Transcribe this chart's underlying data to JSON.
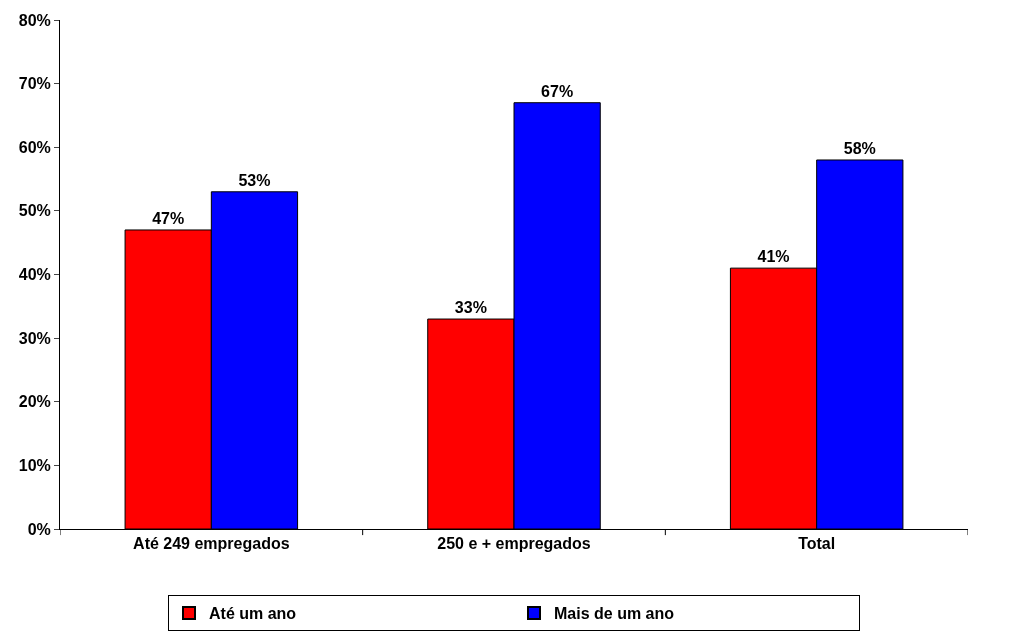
{
  "chart_data": {
    "type": "bar",
    "categories": [
      "Até 249 empregados",
      "250 e + empregados",
      "Total"
    ],
    "series": [
      {
        "name": "Até um ano",
        "color": "#ff0000",
        "values": [
          47,
          33,
          41
        ],
        "value_labels": [
          "47%",
          "33%",
          "41%"
        ]
      },
      {
        "name": "Mais de um ano",
        "color": "#0000ff",
        "values": [
          53,
          67,
          58
        ],
        "value_labels": [
          "53%",
          "67%",
          "58%"
        ]
      }
    ],
    "ylim": [
      0,
      80
    ],
    "yticks": [
      {
        "value": 0,
        "label": "0%"
      },
      {
        "value": 10,
        "label": "10%"
      },
      {
        "value": 20,
        "label": "20%"
      },
      {
        "value": 30,
        "label": "30%"
      },
      {
        "value": 40,
        "label": "40%"
      },
      {
        "value": 50,
        "label": "50%"
      },
      {
        "value": 60,
        "label": "60%"
      },
      {
        "value": 70,
        "label": "70%"
      },
      {
        "value": 80,
        "label": "80%"
      }
    ],
    "legend": "bottom"
  }
}
